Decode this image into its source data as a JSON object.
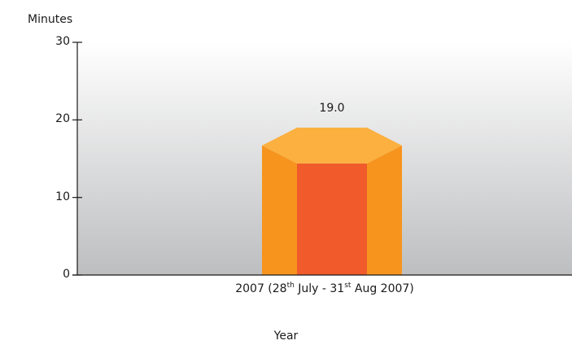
{
  "chart_data": {
    "type": "bar",
    "ylabel": "Minutes",
    "xlabel": "Year",
    "categories": [
      "2007 (28th July - 31st Aug 2007)"
    ],
    "category_parts": {
      "pre": "2007 (28",
      "sup1": "th",
      "mid": " July - 31",
      "sup2": "st",
      "post": " Aug 2007)"
    },
    "values": [
      19.0
    ],
    "data_labels": [
      "19.0"
    ],
    "ylim": [
      0,
      30
    ],
    "yticks": [
      0,
      10,
      20,
      30
    ],
    "grid": false,
    "colors": {
      "bar_front": "#f15a2b",
      "bar_sides": "#f7941e",
      "bar_top": "#fbb040",
      "background_top": "#ffffff",
      "background_bottom": "#bdbec0"
    }
  }
}
